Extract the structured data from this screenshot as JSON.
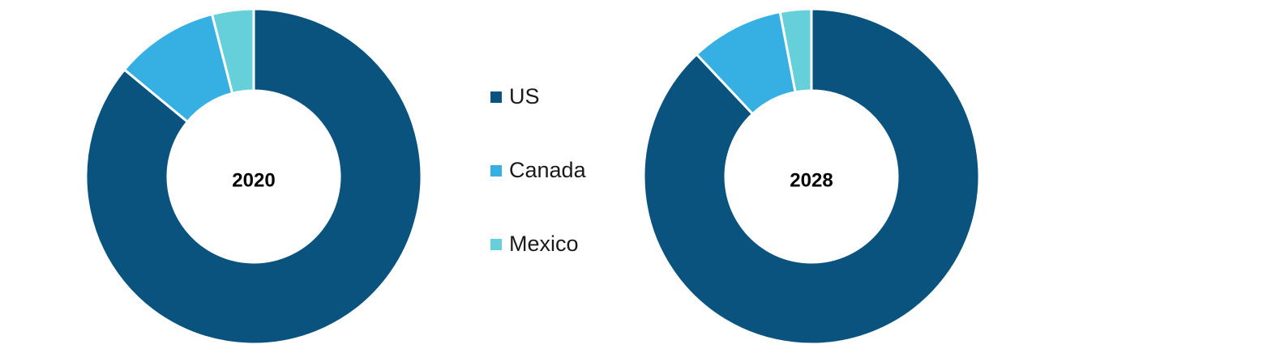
{
  "chart_data": {
    "type": "pie",
    "categories": [
      "US",
      "Canada",
      "Mexico"
    ],
    "colors": [
      "#0a537e",
      "#36b0e2",
      "#66d0da"
    ],
    "series": [
      {
        "name": "2020",
        "values": [
          86,
          10,
          4
        ]
      },
      {
        "name": "2028",
        "values": [
          88,
          9,
          3
        ]
      }
    ]
  }
}
